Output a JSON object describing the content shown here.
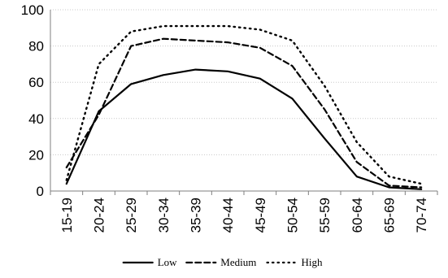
{
  "chart_data": {
    "type": "line",
    "title": "",
    "xlabel": "",
    "ylabel": "",
    "categories": [
      "15-19",
      "20-24",
      "25-29",
      "30-34",
      "35-39",
      "40-44",
      "45-49",
      "50-54",
      "55-59",
      "60-64",
      "65-69",
      "70-74"
    ],
    "ylim": [
      0,
      100
    ],
    "yticks": [
      0,
      20,
      40,
      60,
      80,
      100
    ],
    "grid": "horizontal dotted",
    "legend": "bottom",
    "series": [
      {
        "name": "Low",
        "style": "solid",
        "color": "#000000",
        "values": [
          4,
          44,
          59,
          64,
          67,
          66,
          62,
          51,
          29,
          8,
          2,
          1
        ]
      },
      {
        "name": "Medium",
        "style": "dashed",
        "color": "#000000",
        "values": [
          13,
          42,
          80,
          84,
          83,
          82,
          79,
          69,
          45,
          16,
          3,
          2
        ]
      },
      {
        "name": "High",
        "style": "dotted",
        "color": "#000000",
        "values": [
          6,
          70,
          88,
          91,
          91,
          91,
          89,
          83,
          58,
          27,
          8,
          4
        ]
      }
    ]
  }
}
